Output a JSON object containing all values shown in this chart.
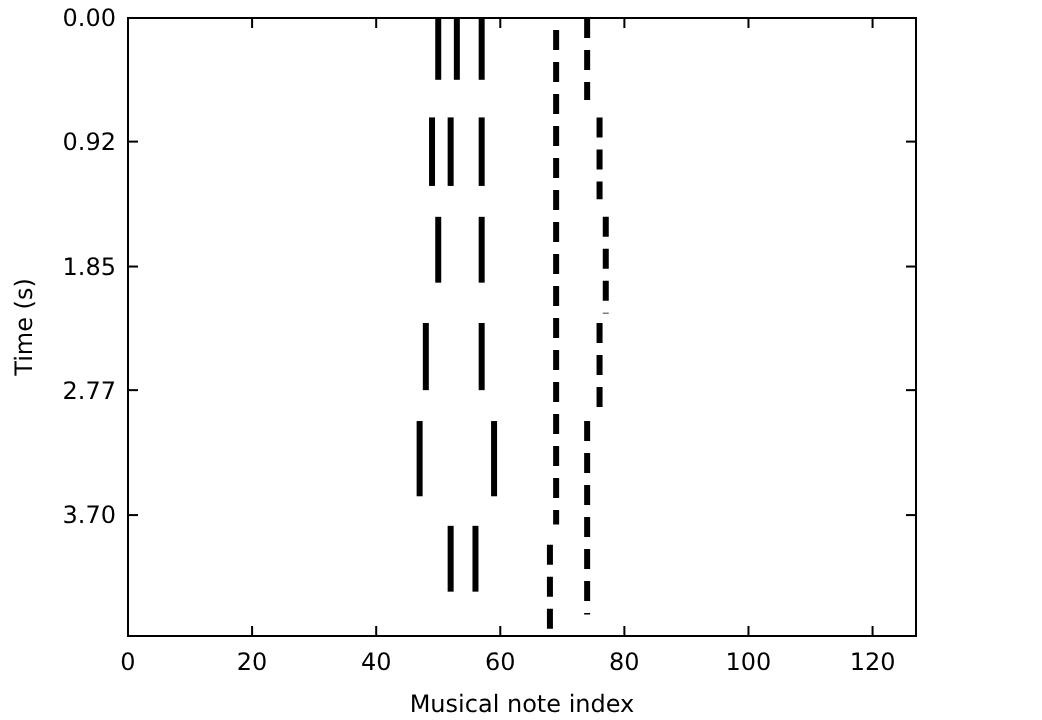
{
  "chart_data": {
    "type": "line",
    "xlabel": "Musical note index",
    "ylabel": "Time (s)",
    "xlim": [
      0,
      127
    ],
    "ylim": [
      4.6,
      0
    ],
    "xticks": [
      0,
      20,
      40,
      60,
      80,
      100,
      120
    ],
    "yticks": [
      {
        "value": 0,
        "label": "0.00"
      },
      {
        "value": 0.92,
        "label": "0.92"
      },
      {
        "value": 1.85,
        "label": "1.85"
      },
      {
        "value": 2.77,
        "label": "2.77"
      },
      {
        "value": 3.7,
        "label": "3.70"
      }
    ],
    "grid": false,
    "marker": "none",
    "series": [
      {
        "color": "#000000",
        "x": [
          50,
          50
        ],
        "values": [
          0,
          0.46
        ],
        "line_style": "solid"
      },
      {
        "color": "#000000",
        "x": [
          53,
          53
        ],
        "values": [
          0,
          0.46
        ],
        "line_style": "solid"
      },
      {
        "color": "#000000",
        "x": [
          57,
          57
        ],
        "values": [
          0,
          0.46
        ],
        "line_style": "solid"
      },
      {
        "color": "#000000",
        "x": [
          49,
          49
        ],
        "values": [
          0.74,
          1.25
        ],
        "line_style": "solid"
      },
      {
        "color": "#000000",
        "x": [
          52,
          52
        ],
        "values": [
          0.74,
          1.25
        ],
        "line_style": "solid"
      },
      {
        "color": "#000000",
        "x": [
          57,
          57
        ],
        "values": [
          0.74,
          1.25
        ],
        "line_style": "solid"
      },
      {
        "color": "#000000",
        "x": [
          50,
          50
        ],
        "values": [
          1.48,
          1.97
        ],
        "line_style": "solid"
      },
      {
        "color": "#000000",
        "x": [
          57,
          57
        ],
        "values": [
          1.48,
          1.97
        ],
        "line_style": "solid"
      },
      {
        "color": "#000000",
        "x": [
          48,
          48
        ],
        "values": [
          2.27,
          2.77
        ],
        "line_style": "solid"
      },
      {
        "color": "#000000",
        "x": [
          57,
          57
        ],
        "values": [
          2.27,
          2.77
        ],
        "line_style": "solid"
      },
      {
        "color": "#000000",
        "x": [
          47,
          47
        ],
        "values": [
          3.0,
          3.56
        ],
        "line_style": "solid"
      },
      {
        "color": "#000000",
        "x": [
          59,
          59
        ],
        "values": [
          3.0,
          3.56
        ],
        "line_style": "solid"
      },
      {
        "color": "#000000",
        "x": [
          52,
          52
        ],
        "values": [
          3.78,
          4.27
        ],
        "line_style": "solid"
      },
      {
        "color": "#000000",
        "x": [
          56,
          56
        ],
        "values": [
          3.78,
          4.27
        ],
        "line_style": "solid"
      },
      {
        "color": "#000000",
        "x": [
          69,
          69
        ],
        "values": [
          0.09,
          3.77
        ],
        "line_style": "dashed"
      },
      {
        "color": "#000000",
        "x": [
          68,
          68
        ],
        "values": [
          3.92,
          4.58
        ],
        "line_style": "dashed"
      },
      {
        "color": "#000000",
        "x": [
          74,
          74
        ],
        "values": [
          0,
          0.61
        ],
        "line_style": "dashed"
      },
      {
        "color": "#000000",
        "x": [
          76,
          76
        ],
        "values": [
          0.74,
          1.35
        ],
        "line_style": "dashed"
      },
      {
        "color": "#000000",
        "x": [
          77,
          77
        ],
        "values": [
          1.48,
          2.2
        ],
        "line_style": "dashed"
      },
      {
        "color": "#000000",
        "x": [
          76,
          76
        ],
        "values": [
          2.27,
          2.9
        ],
        "line_style": "dashed"
      },
      {
        "color": "#000000",
        "x": [
          74,
          74
        ],
        "values": [
          3.0,
          4.44
        ],
        "line_style": "dashed"
      }
    ]
  }
}
